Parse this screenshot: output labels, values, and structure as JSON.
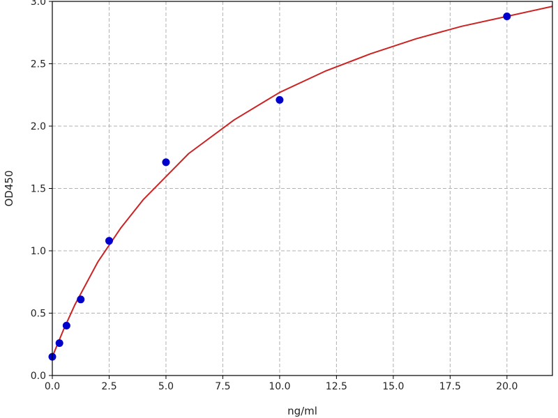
{
  "chart_data": {
    "type": "scatter",
    "title": "",
    "xlabel": "ng/ml",
    "ylabel": "OD450",
    "xlim": [
      0,
      22
    ],
    "ylim": [
      0,
      3.0
    ],
    "grid": true,
    "xticks": [
      "0.0",
      "2.5",
      "5.0",
      "7.5",
      "10.0",
      "12.5",
      "15.0",
      "17.5",
      "20.0"
    ],
    "yticks": [
      "0.0",
      "0.5",
      "1.0",
      "1.5",
      "2.0",
      "2.5",
      "3.0"
    ],
    "points": {
      "color": "#0000cc",
      "x": [
        0,
        0.3125,
        0.625,
        1.25,
        2.5,
        5,
        10,
        20
      ],
      "y": [
        0.15,
        0.26,
        0.4,
        0.61,
        1.08,
        1.71,
        2.21,
        2.88
      ]
    },
    "fit_curve": {
      "color": "#cc2222",
      "x": [
        0,
        0.5,
        1,
        2,
        3,
        4,
        6,
        8,
        10,
        12,
        14,
        16,
        18,
        20,
        22
      ],
      "y": [
        0.15,
        0.37,
        0.57,
        0.91,
        1.18,
        1.41,
        1.78,
        2.05,
        2.27,
        2.44,
        2.58,
        2.7,
        2.8,
        2.88,
        2.96
      ]
    }
  }
}
